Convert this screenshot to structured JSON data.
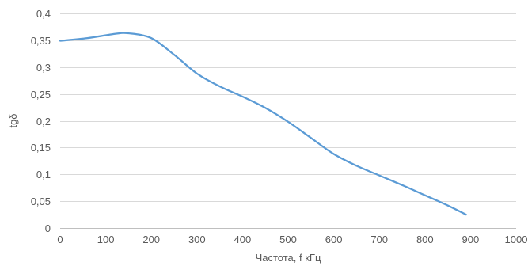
{
  "chart_data": {
    "type": "line",
    "title": "",
    "xlabel": "Частота, f кГц",
    "ylabel": "tgδ",
    "xlim": [
      0,
      1000
    ],
    "ylim": [
      0,
      0.4
    ],
    "x_ticks": [
      0,
      100,
      200,
      300,
      400,
      500,
      600,
      700,
      800,
      900,
      1000
    ],
    "x_tick_labels": [
      "0",
      "100",
      "200",
      "300",
      "400",
      "500",
      "600",
      "700",
      "800",
      "900",
      "1000"
    ],
    "y_ticks": [
      0,
      0.05,
      0.1,
      0.15,
      0.2,
      0.25,
      0.3,
      0.35,
      0.4
    ],
    "y_tick_labels": [
      "0",
      "0,05",
      "0,1",
      "0,15",
      "0,2",
      "0,25",
      "0,3",
      "0,35",
      "0,4"
    ],
    "grid": "horizontal",
    "legend": "none",
    "series": [
      {
        "color": "#5b9bd5",
        "x": [
          0,
          60,
          120,
          150,
          200,
          250,
          300,
          350,
          400,
          450,
          500,
          550,
          600,
          650,
          700,
          750,
          800,
          850,
          890
        ],
        "y": [
          0.349,
          0.354,
          0.362,
          0.363,
          0.354,
          0.323,
          0.288,
          0.264,
          0.245,
          0.224,
          0.198,
          0.168,
          0.138,
          0.116,
          0.098,
          0.08,
          0.061,
          0.042,
          0.025
        ]
      }
    ]
  }
}
